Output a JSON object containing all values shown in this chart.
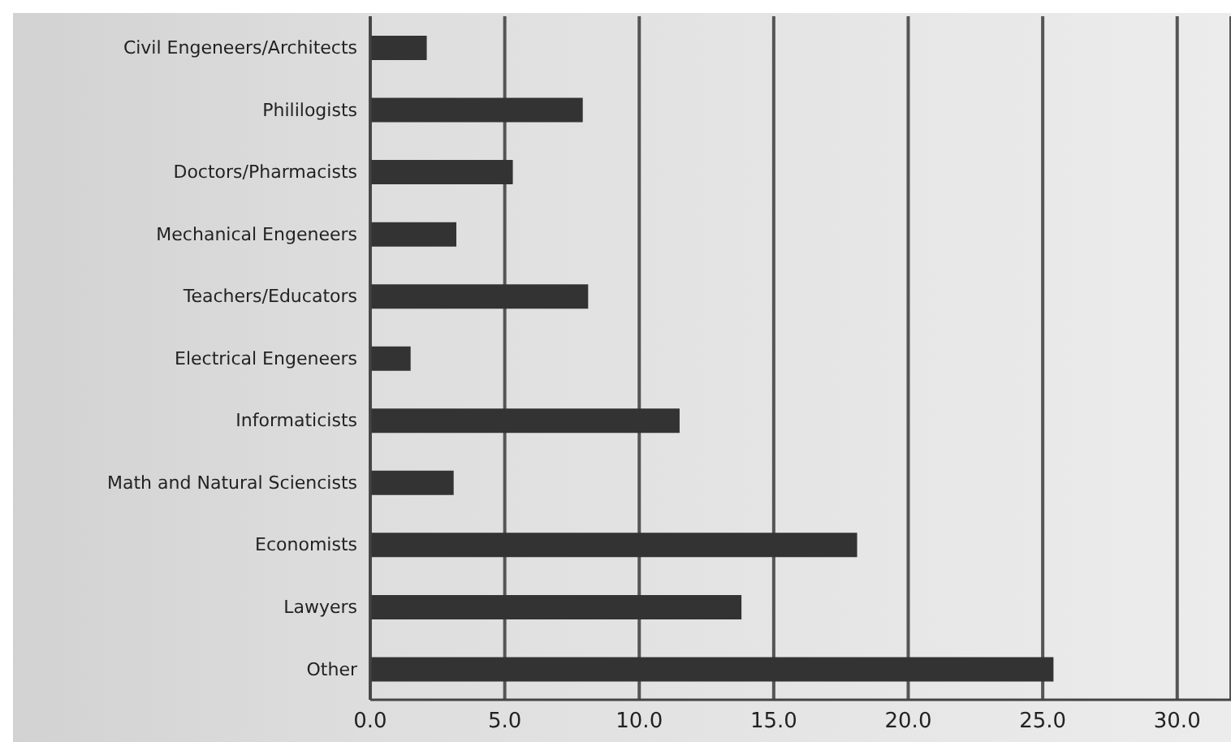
{
  "chart_data": {
    "type": "bar",
    "orientation": "horizontal",
    "categories": [
      "Civil Engeneers/Architects",
      "Phililogists",
      "Doctors/Pharmacists",
      "Mechanical Engeneers",
      "Teachers/Educators",
      "Electrical Engeneers",
      "Informaticists",
      "Math and Natural Sciencists",
      "Economists",
      "Lawyers",
      "Other"
    ],
    "values": [
      2.1,
      7.9,
      5.3,
      3.2,
      8.1,
      1.5,
      11.5,
      3.1,
      18.1,
      13.8,
      25.4
    ],
    "color": "#333333",
    "xlim": [
      0,
      32
    ],
    "xticks": [
      {
        "value": 0,
        "label": "0.0"
      },
      {
        "value": 5,
        "label": "5.0"
      },
      {
        "value": 10,
        "label": "10.0"
      },
      {
        "value": 15,
        "label": "15.0"
      },
      {
        "value": 20,
        "label": "20.0"
      },
      {
        "value": 25,
        "label": "25.0"
      },
      {
        "value": 30,
        "label": "30.0"
      }
    ],
    "grid": "x"
  }
}
